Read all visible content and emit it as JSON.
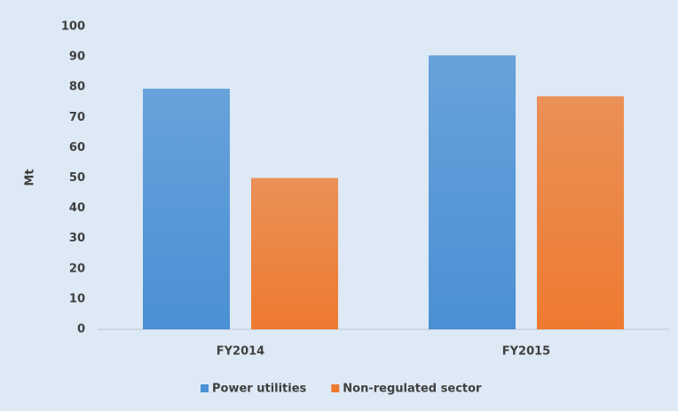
{
  "chart_data": {
    "type": "bar",
    "y_label": "Mt",
    "categories": [
      "FY2014",
      "FY2015"
    ],
    "series": [
      {
        "name": "Power utilities",
        "color": "#4a90d4",
        "values": [
          79.5,
          90.5
        ]
      },
      {
        "name": "Non-regulated sector",
        "color": "#ee7a30",
        "values": [
          50,
          77
        ]
      }
    ],
    "ylim": [
      0,
      100
    ],
    "yticks": [
      0,
      10,
      20,
      30,
      40,
      50,
      60,
      70,
      80,
      90,
      100
    ],
    "grid": false,
    "legend": "bottom"
  }
}
